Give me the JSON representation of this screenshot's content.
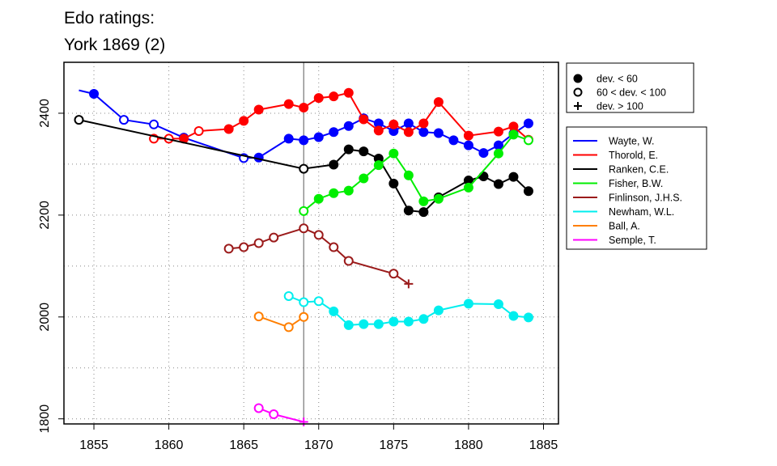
{
  "chart_data": {
    "type": "line",
    "title": "Edo ratings:",
    "subtitle": "York 1869 (2)",
    "xlim": [
      1853,
      1886
    ],
    "ylim": [
      1790,
      2500
    ],
    "x_ticks": [
      1855,
      1860,
      1865,
      1870,
      1875,
      1880,
      1885
    ],
    "y_ticks": [
      1800,
      2000,
      2200,
      2400
    ],
    "grid": true,
    "event_year": 1869,
    "marker_legend": [
      {
        "label": "dev. < 60",
        "marker": "filled"
      },
      {
        "label": "60 < dev. < 100",
        "marker": "open"
      },
      {
        "label": "dev. > 100",
        "marker": "plus"
      }
    ],
    "series": [
      {
        "name": "Wayte, W.",
        "color": "#0000ff",
        "points": [
          [
            1854,
            2445,
            "n"
          ],
          [
            1855,
            2438,
            "f"
          ],
          [
            1857,
            2387,
            "o"
          ],
          [
            1859,
            2378,
            "o"
          ],
          [
            1861,
            2352,
            "f"
          ],
          [
            1865,
            2312,
            "o"
          ],
          [
            1866,
            2313,
            "f"
          ],
          [
            1868,
            2350,
            "f"
          ],
          [
            1869,
            2347,
            "f"
          ],
          [
            1870,
            2353,
            "f"
          ],
          [
            1871,
            2363,
            "f"
          ],
          [
            1872,
            2375,
            "f"
          ],
          [
            1873,
            2390,
            "f"
          ],
          [
            1874,
            2380,
            "f"
          ],
          [
            1875,
            2365,
            "f"
          ],
          [
            1876,
            2380,
            "f"
          ],
          [
            1877,
            2363,
            "f"
          ],
          [
            1878,
            2361,
            "f"
          ],
          [
            1879,
            2347,
            "f"
          ],
          [
            1880,
            2337,
            "f"
          ],
          [
            1881,
            2322,
            "f"
          ],
          [
            1882,
            2337,
            "f"
          ],
          [
            1883,
            2360,
            "f"
          ],
          [
            1884,
            2380,
            "f"
          ]
        ]
      },
      {
        "name": "Thorold, E.",
        "color": "#ff0000",
        "points": [
          [
            1859,
            2350,
            "o"
          ],
          [
            1860,
            2350,
            "o"
          ],
          [
            1861,
            2350,
            "f"
          ],
          [
            1862,
            2365,
            "o"
          ],
          [
            1864,
            2369,
            "f"
          ],
          [
            1865,
            2385,
            "f"
          ],
          [
            1866,
            2407,
            "f"
          ],
          [
            1868,
            2418,
            "f"
          ],
          [
            1869,
            2411,
            "f"
          ],
          [
            1870,
            2430,
            "f"
          ],
          [
            1871,
            2433,
            "f"
          ],
          [
            1872,
            2440,
            "f"
          ],
          [
            1873,
            2388,
            "f"
          ],
          [
            1874,
            2366,
            "f"
          ],
          [
            1875,
            2378,
            "f"
          ],
          [
            1876,
            2363,
            "f"
          ],
          [
            1877,
            2380,
            "f"
          ],
          [
            1878,
            2422,
            "f"
          ],
          [
            1880,
            2356,
            "f"
          ],
          [
            1882,
            2364,
            "f"
          ],
          [
            1883,
            2374,
            "f"
          ],
          [
            1884,
            2348,
            "f"
          ]
        ]
      },
      {
        "name": "Ranken, C.E.",
        "color": "#000000",
        "points": [
          [
            1854,
            2387,
            "o"
          ],
          [
            1869,
            2291,
            "o"
          ],
          [
            1871,
            2299,
            "f"
          ],
          [
            1872,
            2329,
            "f"
          ],
          [
            1873,
            2325,
            "f"
          ],
          [
            1874,
            2311,
            "f"
          ],
          [
            1875,
            2262,
            "f"
          ],
          [
            1876,
            2209,
            "f"
          ],
          [
            1877,
            2206,
            "f"
          ],
          [
            1878,
            2235,
            "f"
          ],
          [
            1880,
            2268,
            "f"
          ],
          [
            1881,
            2276,
            "f"
          ],
          [
            1882,
            2261,
            "f"
          ],
          [
            1883,
            2275,
            "f"
          ],
          [
            1884,
            2247,
            "f"
          ]
        ]
      },
      {
        "name": "Fisher, B.W.",
        "color": "#00ee00",
        "points": [
          [
            1869,
            2208,
            "o"
          ],
          [
            1870,
            2232,
            "f"
          ],
          [
            1871,
            2243,
            "f"
          ],
          [
            1872,
            2248,
            "f"
          ],
          [
            1873,
            2272,
            "f"
          ],
          [
            1874,
            2298,
            "f"
          ],
          [
            1875,
            2321,
            "f"
          ],
          [
            1876,
            2278,
            "f"
          ],
          [
            1877,
            2227,
            "f"
          ],
          [
            1878,
            2232,
            "f"
          ],
          [
            1880,
            2254,
            "f"
          ],
          [
            1882,
            2321,
            "f"
          ],
          [
            1883,
            2358,
            "f"
          ],
          [
            1884,
            2347,
            "o"
          ]
        ]
      },
      {
        "name": "Finlinson, J.H.S.",
        "color": "#9b1b1b",
        "points": [
          [
            1864,
            2134,
            "o"
          ],
          [
            1865,
            2137,
            "o"
          ],
          [
            1866,
            2145,
            "o"
          ],
          [
            1867,
            2156,
            "o"
          ],
          [
            1869,
            2174,
            "o"
          ],
          [
            1870,
            2161,
            "o"
          ],
          [
            1871,
            2137,
            "o"
          ],
          [
            1872,
            2110,
            "o"
          ],
          [
            1875,
            2085,
            "o"
          ],
          [
            1876,
            2065,
            "p"
          ]
        ]
      },
      {
        "name": "Newham, W.L.",
        "color": "#00eeee",
        "points": [
          [
            1868,
            2041,
            "o"
          ],
          [
            1869,
            2029,
            "o"
          ],
          [
            1870,
            2031,
            "o"
          ],
          [
            1871,
            2011,
            "f"
          ],
          [
            1872,
            1984,
            "f"
          ],
          [
            1873,
            1986,
            "f"
          ],
          [
            1874,
            1986,
            "f"
          ],
          [
            1875,
            1991,
            "f"
          ],
          [
            1876,
            1991,
            "f"
          ],
          [
            1877,
            1996,
            "f"
          ],
          [
            1878,
            2013,
            "f"
          ],
          [
            1880,
            2026,
            "f"
          ],
          [
            1882,
            2025,
            "f"
          ],
          [
            1883,
            2002,
            "f"
          ],
          [
            1884,
            1999,
            "f"
          ]
        ]
      },
      {
        "name": "Ball, A.",
        "color": "#ff7f00",
        "points": [
          [
            1866,
            2001,
            "o"
          ],
          [
            1868,
            1980,
            "o"
          ],
          [
            1869,
            2000,
            "o"
          ]
        ]
      },
      {
        "name": "Semple, T.",
        "color": "#ff00ff",
        "points": [
          [
            1866,
            1821,
            "o"
          ],
          [
            1867,
            1809,
            "o"
          ],
          [
            1869,
            1794,
            "p"
          ]
        ]
      }
    ]
  }
}
